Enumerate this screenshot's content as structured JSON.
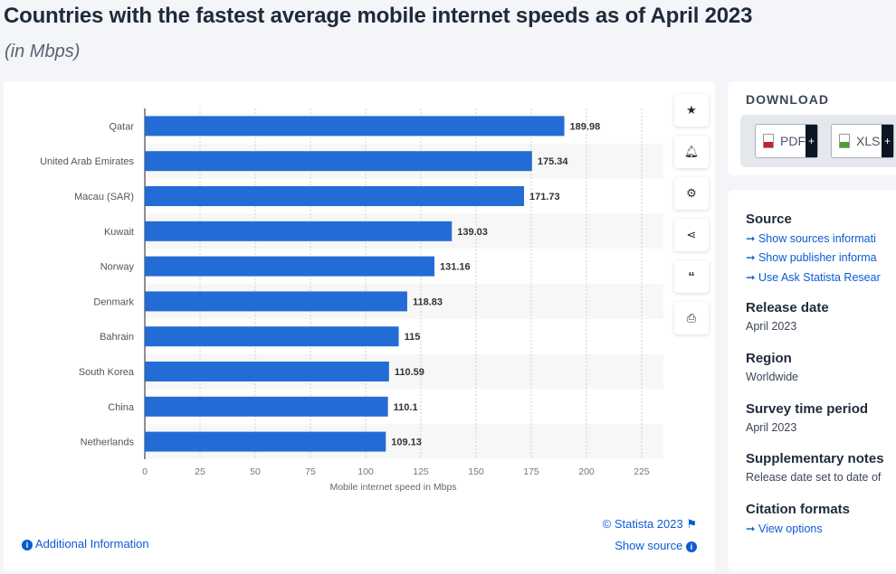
{
  "header": {
    "title": "Countries with the fastest average mobile internet speeds as of April 2023",
    "subtitle": "(in Mbps)"
  },
  "chart_data": {
    "type": "bar",
    "orientation": "horizontal",
    "categories": [
      "Qatar",
      "United Arab Emirates",
      "Macau (SAR)",
      "Kuwait",
      "Norway",
      "Denmark",
      "Bahrain",
      "South Korea",
      "China",
      "Netherlands"
    ],
    "values": [
      189.98,
      175.34,
      171.73,
      139.03,
      131.16,
      118.83,
      115,
      110.59,
      110.1,
      109.13
    ],
    "value_labels": [
      "189.98",
      "175.34",
      "171.73",
      "139.03",
      "131.16",
      "118.83",
      "115",
      "110.59",
      "110.1",
      "109.13"
    ],
    "xlabel": "Mobile internet speed in Mbps",
    "ylabel": "",
    "xlim": [
      0,
      225
    ],
    "xticks": [
      "0",
      "25",
      "50",
      "75",
      "100",
      "125",
      "150",
      "175",
      "200",
      "225"
    ],
    "grid": true,
    "bar_color": "#246cd5"
  },
  "chart_footer": {
    "copyright": "© Statista 2023",
    "additional_info": "Additional Information",
    "show_source": "Show source"
  },
  "tools": [
    "star-icon",
    "bell-icon",
    "gear-icon",
    "share-icon",
    "quote-icon",
    "print-icon"
  ],
  "download": {
    "title": "DOWNLOAD",
    "pdf": "PDF",
    "xls": "XLS",
    "plus": "+"
  },
  "meta": {
    "source_title": "Source",
    "source_links": [
      "Show sources informati",
      "Show publisher informa",
      "Use Ask Statista Resear"
    ],
    "release_title": "Release date",
    "release_value": "April 2023",
    "region_title": "Region",
    "region_value": "Worldwide",
    "survey_title": "Survey time period",
    "survey_value": "April 2023",
    "supp_title": "Supplementary notes",
    "supp_value": "Release date set to date of",
    "citation_title": "Citation formats",
    "citation_link": "View options"
  }
}
